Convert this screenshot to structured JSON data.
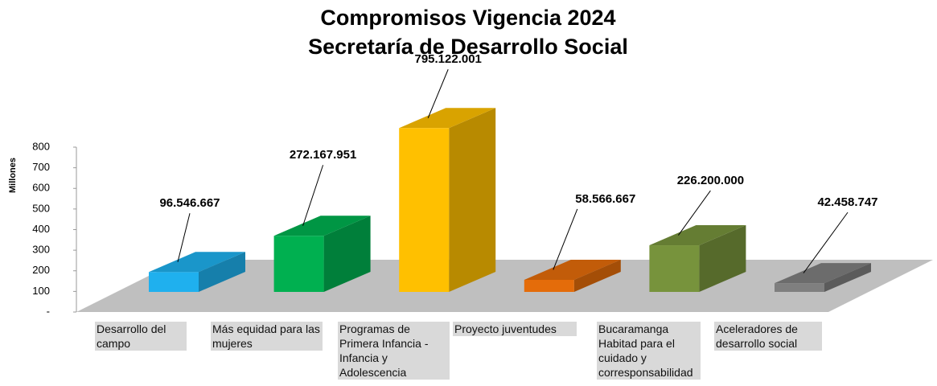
{
  "chart_data": {
    "type": "bar3d",
    "title": "Compromisos Vigencia 2024",
    "subtitle": "Secretaría de Desarrollo Social",
    "y_label": "Millones",
    "categories": [
      "Desarrollo del campo",
      "Más equidad para las mujeres",
      "Programas de Primera Infancia - Infancia y Adolescencia",
      "Proyecto juventudes",
      "Bucaramanga Habitad para el cuidado y corresponsabilidad",
      "Aceleradores de desarrollo social"
    ],
    "values": [
      96.546667,
      272.167951,
      795.122001,
      58.566667,
      226.2,
      42.458747
    ],
    "value_labels": [
      "96.546.667",
      "272.167.951",
      "795.122.001",
      "58.566.667",
      "226.200.000",
      "42.458.747"
    ],
    "colors": [
      "#1fb0ee",
      "#00b050",
      "#ffc000",
      "#e46c0a",
      "#77933c",
      "#7f7f7f"
    ],
    "ylim": [
      0,
      800
    ],
    "yticks": [
      {
        "value": 0,
        "label": "-"
      },
      100,
      200,
      300,
      400,
      500,
      600,
      700,
      800
    ]
  }
}
